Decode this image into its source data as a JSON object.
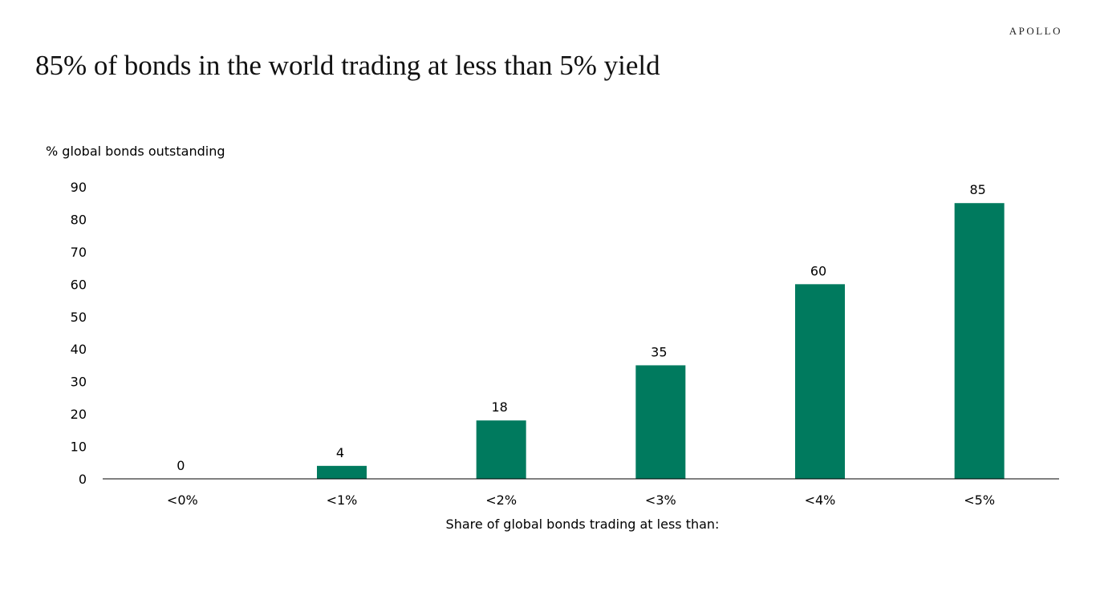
{
  "logo": "APOLLO",
  "title": "85% of  bonds in the world trading at less than 5% yield",
  "chart_data": {
    "type": "bar",
    "title": "85% of  bonds in the world trading at less than 5% yield",
    "ylabel": "% global bonds outstanding",
    "xlabel": "Share of global bonds trading at less than:",
    "categories": [
      "<0%",
      "<1%",
      "<2%",
      "<3%",
      "<4%",
      "<5%"
    ],
    "values": [
      0,
      4,
      18,
      35,
      60,
      85
    ],
    "data_labels": [
      "0",
      "4",
      "18",
      "35",
      "60",
      "85"
    ],
    "ylim": [
      0,
      90
    ],
    "yticks": [
      "0",
      "10",
      "20",
      "30",
      "40",
      "50",
      "60",
      "70",
      "80",
      "90"
    ],
    "grid": false,
    "bar_color": "#007A5E"
  }
}
